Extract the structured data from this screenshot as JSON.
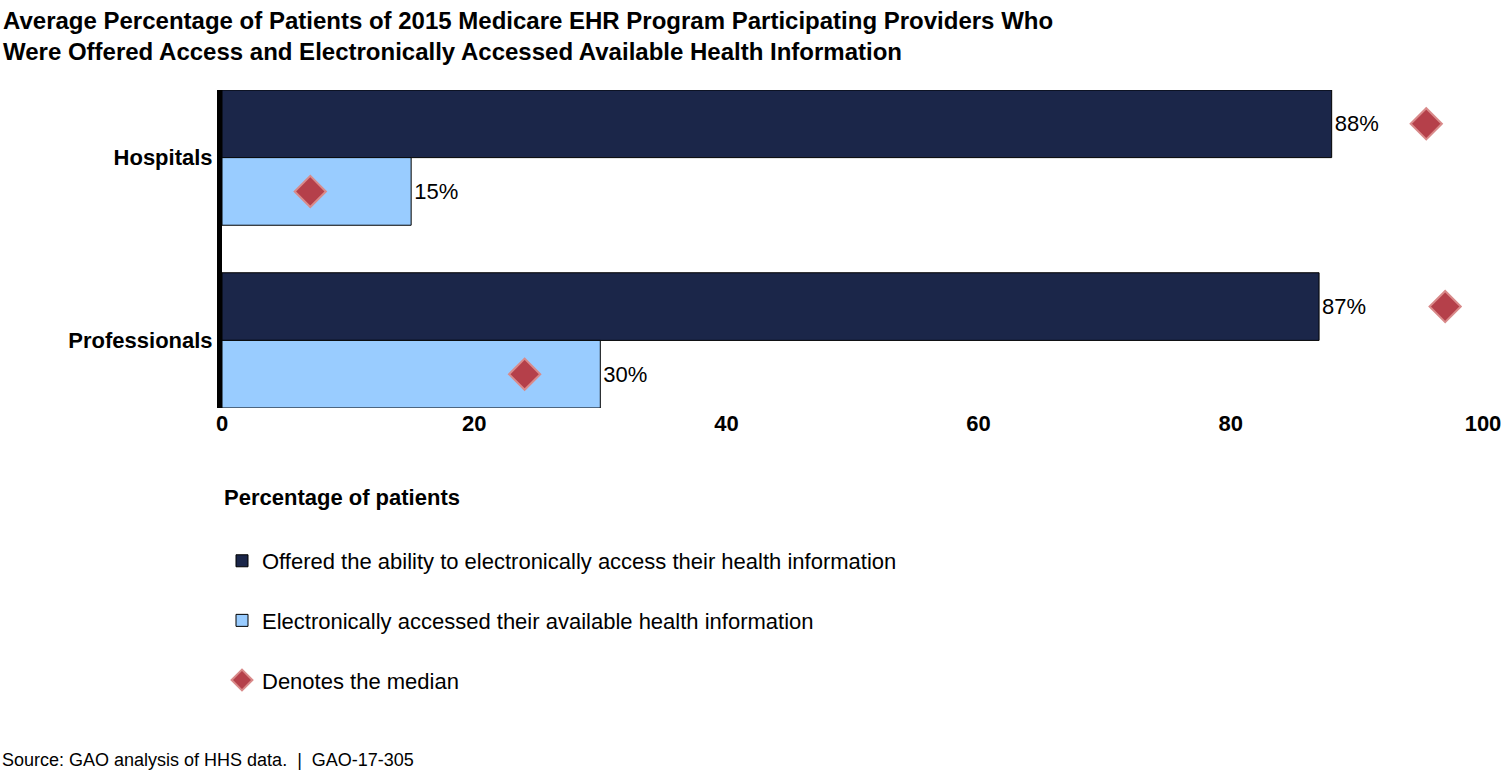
{
  "chart_data": {
    "type": "bar",
    "orientation": "horizontal",
    "title": "Average Percentage of Patients of 2015 Medicare EHR Program Participating Providers Who Were Offered Access and Electronically Accessed Available Health Information",
    "xlabel": "Percentage of patients",
    "note": "Source: GAO analysis of HHS data.  |  GAO-17-305",
    "categories": [
      "Hospitals",
      "Professionals"
    ],
    "series": [
      {
        "name": "Offered the ability to electronically access their health information",
        "color": "#1b2649",
        "values": [
          88,
          87
        ],
        "value_labels": [
          "88%",
          "87%"
        ],
        "medians": [
          95.5,
          97
        ]
      },
      {
        "name": "Electronically accessed their available health information",
        "color": "#99ccff",
        "values": [
          15,
          30
        ],
        "value_labels": [
          "15%",
          "30%"
        ],
        "medians": [
          7,
          24
        ]
      }
    ],
    "median_name": "Denotes the median",
    "median_color": "#b5404a",
    "median_marker": "diamond",
    "xlim": [
      0,
      100
    ],
    "xticks": [
      0,
      20,
      40,
      60,
      80,
      100
    ],
    "grid": false,
    "data_labels": true,
    "legend": "bottom left"
  }
}
